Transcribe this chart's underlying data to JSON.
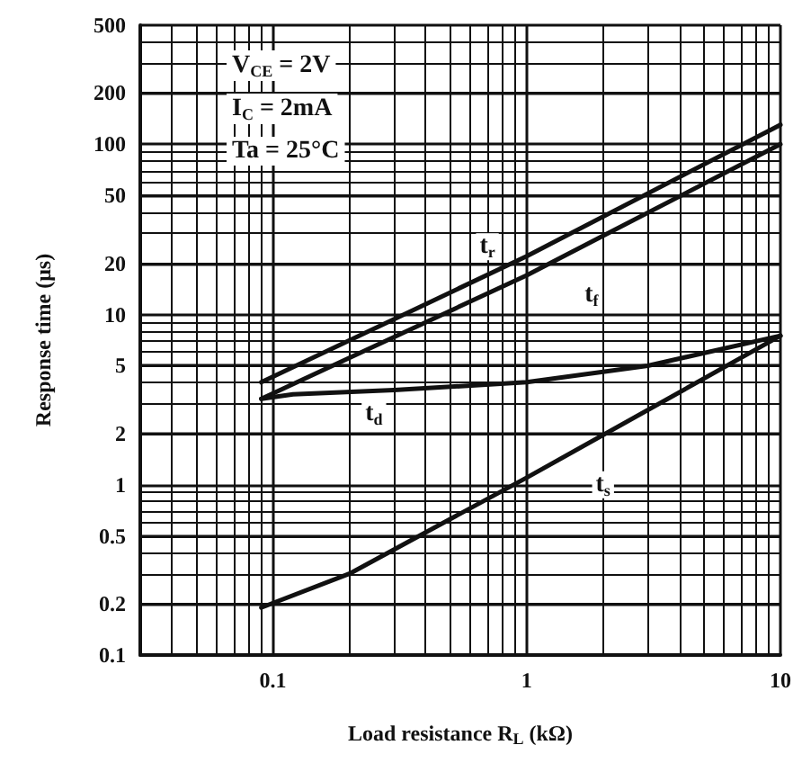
{
  "chart_data": {
    "type": "line",
    "xlabel": "Load resistance R$_{L}$ (kΩ)",
    "ylabel": "Response time (μs)",
    "log": "xy",
    "grid": true,
    "marker": "none",
    "line_style": "solid",
    "xlim": [
      0.03,
      10
    ],
    "xticks": [
      0.1,
      1,
      10
    ],
    "ylim": [
      0.1,
      500
    ],
    "yticks": [
      0.1,
      0.2,
      0.5,
      1,
      2,
      5,
      10,
      20,
      50,
      100,
      200,
      500
    ],
    "series": [
      {
        "color": "#111111",
        "x": [
          0.09,
          1,
          10
        ],
        "values": [
          4,
          22,
          130
        ]
      },
      {
        "color": "#111111",
        "x": [
          0.09,
          1,
          10
        ],
        "values": [
          3.2,
          17,
          100
        ]
      },
      {
        "color": "#111111",
        "x": [
          0.09,
          0.12,
          0.3,
          1,
          3,
          10
        ],
        "values": [
          3.2,
          3.4,
          3.6,
          4,
          5,
          7.5
        ]
      },
      {
        "color": "#111111",
        "x": [
          0.09,
          0.2,
          1,
          10
        ],
        "values": [
          0.19,
          0.3,
          1.1,
          7.5
        ]
      }
    ],
    "annotations": [
      "V$_{CE}$ = 2V",
      "I$_{C}$ = 2mA",
      "Ta = 25°C",
      {
        "text": "t$_{r}$",
        "x": 0.7,
        "y": 25
      },
      {
        "text": "t$_{f}$",
        "x": 1.8,
        "y": 13
      },
      {
        "text": "t$_{d}$",
        "x": 0.25,
        "y": 2.6
      },
      {
        "text": "t$_{s}$",
        "x": 2,
        "y": 1
      }
    ]
  }
}
